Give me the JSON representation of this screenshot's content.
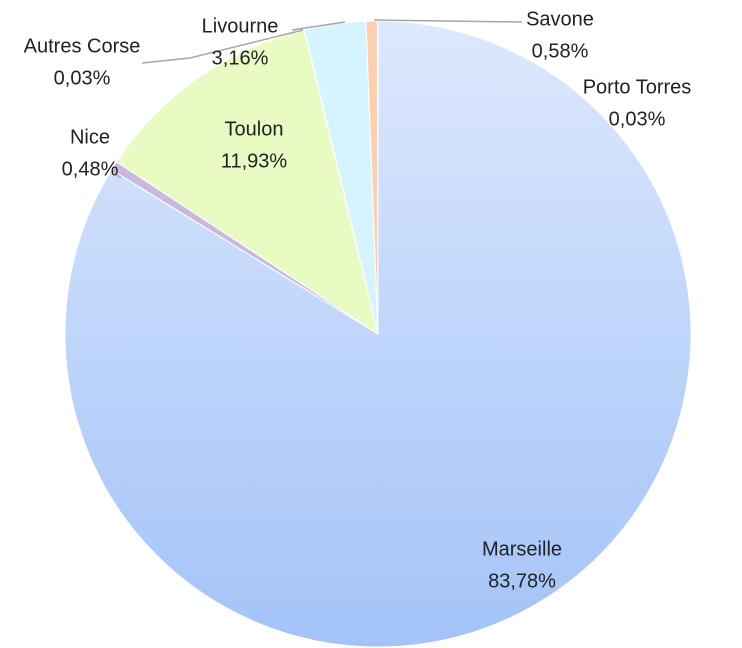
{
  "chart_data": {
    "type": "pie",
    "categories": [
      "Marseille",
      "Nice",
      "Toulon",
      "Autres Corse",
      "Livourne",
      "Savone",
      "Porto Torres"
    ],
    "values": [
      83.78,
      0.48,
      11.93,
      0.03,
      3.16,
      0.58,
      0.03
    ],
    "value_labels": [
      "83,78%",
      "0,48%",
      "11,93%",
      "0,03%",
      "3,16%",
      "0,58%",
      "0,03%"
    ],
    "colors": [
      "#b5d0fb",
      "#c9b9df",
      "#e8fbc2",
      "#dff3f9",
      "#d6f4fd",
      "#fbd0b2",
      "#f6e0c8"
    ]
  }
}
